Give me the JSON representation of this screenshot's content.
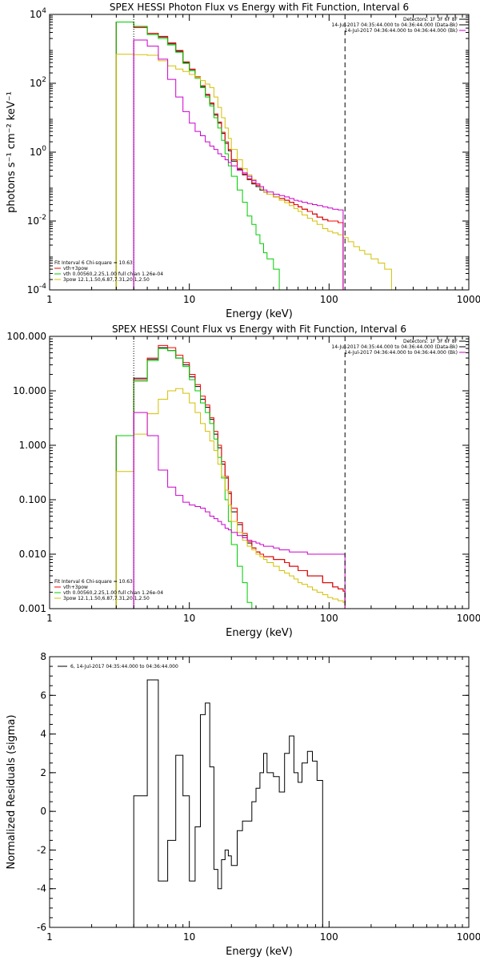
{
  "colors": {
    "black": "#000000",
    "red": "#ff0000",
    "green": "#00cc00",
    "yellow": "#d4c000",
    "magenta": "#cc00cc"
  },
  "chart_data": [
    {
      "type": "line",
      "step": true,
      "title": "SPEX HESSI Photon Flux vs Energy with Fit Function, Interval 6",
      "xlabel": "Energy (keV)",
      "ylabel": "photons s⁻¹ cm⁻² keV⁻¹",
      "xscale": "log",
      "yscale": "log",
      "xlim": [
        1,
        1000
      ],
      "ylim": [
        0.0001,
        10000
      ],
      "xticks": [
        "1",
        "10",
        "100",
        "1000"
      ],
      "yticks": [
        {
          "v": 0.0001,
          "m": "10",
          "e": "-4"
        },
        {
          "v": 0.01,
          "m": "10",
          "e": "-2"
        },
        {
          "v": 1,
          "m": "10",
          "e": "0"
        },
        {
          "v": 100,
          "m": "10",
          "e": "2"
        },
        {
          "v": 10000,
          "m": "10",
          "e": "4"
        }
      ],
      "vlines": [
        {
          "x": 4,
          "style": "dotted",
          "color": "#000000"
        },
        {
          "x": 130,
          "style": "dashed",
          "color": "#000000"
        }
      ],
      "info": [
        "Detectors: 1F 3F 6F 8F",
        "14-Jul-2017 04:35:44.000 to 04:36:44.000 (Data-Bk)",
        "14-Jul-2017 04:36:44.000 to 04:36:44.000 (Bk)"
      ],
      "info_colors": [
        "#000000",
        "#000000",
        "#cc00cc"
      ],
      "fit": [
        "Fit Interval 6   Chi-square = 10.63",
        "vth+3pow",
        "vth 0.00560,2.25,1.00  full chian 1.26e-04",
        "3pow 12.1,1.50,6.87,7.31,20.1,2.50"
      ],
      "fit_colors": [
        "#000000",
        "#ff0000",
        "#00cc00",
        "#d4c000"
      ],
      "edges": [
        3,
        4,
        5,
        6,
        7,
        8,
        9,
        10,
        11,
        12,
        13,
        14,
        15,
        16,
        17,
        18,
        19,
        20,
        22,
        24,
        26,
        28,
        30,
        32,
        34,
        36,
        40,
        44,
        48,
        52,
        56,
        60,
        64,
        70,
        76,
        82,
        90,
        98,
        106,
        116,
        126,
        137,
        150,
        165,
        180,
        200,
        225,
        250,
        280
      ],
      "series": [
        {
          "color": "#000000",
          "values": [
            6000,
            4200,
            2800,
            2200,
            1400,
            850,
            400,
            250,
            150,
            80,
            45,
            25,
            12,
            7,
            3.5,
            1.8,
            1.1,
            0.55,
            0.32,
            0.22,
            0.16,
            0.12,
            0.1,
            0.08,
            0.07,
            0.06,
            0.05,
            0.045,
            0.04,
            0.035,
            0.03,
            0.026,
            0.022,
            0.019,
            0.016,
            0.013,
            0.011,
            0.01,
            0.01,
            0.009
          ]
        },
        {
          "color": "#ff0000",
          "values": [
            6000,
            4200,
            2800,
            2300,
            1500,
            900,
            420,
            260,
            155,
            85,
            48,
            27,
            13,
            7.5,
            3.8,
            2.0,
            1.2,
            0.6,
            0.34,
            0.23,
            0.17,
            0.13,
            0.11,
            0.09,
            0.07,
            0.06,
            0.05,
            0.045,
            0.04,
            0.035,
            0.03,
            0.026,
            0.022,
            0.019,
            0.016,
            0.013,
            0.011,
            0.01,
            0.01,
            0.009
          ]
        },
        {
          "color": "#00cc00",
          "values": [
            6000,
            4500,
            2600,
            2000,
            1300,
            800,
            380,
            230,
            140,
            75,
            40,
            22,
            10,
            5,
            2.2,
            0.9,
            0.4,
            0.2,
            0.08,
            0.035,
            0.014,
            0.008,
            0.004,
            0.0022,
            0.0012,
            0.0008,
            0.0004
          ]
        },
        {
          "color": "#d4c000",
          "values": [
            700,
            680,
            650,
            450,
            320,
            260,
            220,
            180,
            150,
            120,
            95,
            75,
            40,
            20,
            10,
            5,
            2.5,
            1.2,
            0.6,
            0.33,
            0.22,
            0.16,
            0.12,
            0.09,
            0.07,
            0.06,
            0.05,
            0.04,
            0.034,
            0.028,
            0.023,
            0.019,
            0.015,
            0.012,
            0.01,
            0.008,
            0.006,
            0.005,
            0.0045,
            0.004,
            0.0033,
            0.0025,
            0.0018,
            0.0014,
            0.0011,
            0.0008,
            0.0006,
            0.0004
          ]
        },
        {
          "color": "#cc00cc",
          "values": [
            1e-05,
            1800,
            1200,
            500,
            130,
            40,
            15,
            7,
            4,
            3,
            2,
            1.5,
            1.2,
            0.9,
            0.75,
            0.6,
            0.5,
            0.4,
            0.3,
            0.25,
            0.2,
            0.15,
            0.12,
            0.1,
            0.08,
            0.07,
            0.06,
            0.055,
            0.05,
            0.045,
            0.04,
            0.038,
            0.035,
            0.032,
            0.03,
            0.028,
            0.026,
            0.024,
            0.022,
            0.021
          ]
        }
      ]
    },
    {
      "type": "line",
      "step": true,
      "title": "SPEX HESSI Count Flux vs Energy with Fit Function, Interval 6",
      "xlabel": "Energy (keV)",
      "ylabel": "",
      "xscale": "log",
      "yscale": "log",
      "xlim": [
        1,
        1000
      ],
      "ylim": [
        0.001,
        100
      ],
      "xticks": [
        "1",
        "10",
        "100",
        "1000"
      ],
      "yticks": [
        {
          "v": 0.001,
          "t": "0.001"
        },
        {
          "v": 0.01,
          "t": "0.010"
        },
        {
          "v": 0.1,
          "t": "0.100"
        },
        {
          "v": 1,
          "t": "1.000"
        },
        {
          "v": 10,
          "t": "10.000"
        },
        {
          "v": 100,
          "t": "100.000"
        }
      ],
      "vlines": [
        {
          "x": 4,
          "style": "dotted",
          "color": "#000000"
        },
        {
          "x": 130,
          "style": "dashed",
          "color": "#000000"
        }
      ],
      "info": [
        "Detectors: 1F 3F 6F 8F",
        "14-Jul-2017 04:35:44.000 to 04:36:44.000 (Data-Bk)",
        "14-Jul-2017 04:36:44.000 to 04:36:44.000 (Bk)"
      ],
      "info_colors": [
        "#000000",
        "#000000",
        "#cc00cc"
      ],
      "fit": [
        "Fit Interval 6   Chi-square = 10.63",
        "vth+3pow",
        "vth 0.00560,2.25,1.00  full chian 1.26e-04",
        "3pow 12.1,1.50,6.87,7.31,20.1,2.50"
      ],
      "fit_colors": [
        "#000000",
        "#ff0000",
        "#00cc00",
        "#d4c000"
      ],
      "edges": [
        3,
        4,
        5,
        6,
        7,
        8,
        9,
        10,
        11,
        12,
        13,
        14,
        15,
        16,
        17,
        18,
        19,
        20,
        22,
        24,
        26,
        28,
        30,
        32,
        34,
        36,
        40,
        44,
        48,
        52,
        56,
        60,
        64,
        70,
        76,
        82,
        90,
        98,
        106,
        116,
        126,
        130
      ],
      "series": [
        {
          "color": "#000000",
          "values": [
            1.5,
            17,
            38,
            62,
            55,
            40,
            30,
            18,
            12,
            7,
            5,
            3,
            1.6,
            0.9,
            0.45,
            0.25,
            0.13,
            0.06,
            0.035,
            0.022,
            0.016,
            0.013,
            0.011,
            0.01,
            0.009,
            0.009,
            0.008,
            0.008,
            0.007,
            0.006,
            0.006,
            0.005,
            0.005,
            0.004,
            0.004,
            0.004,
            0.003,
            0.003,
            0.0025,
            0.0023,
            0.0021
          ]
        },
        {
          "color": "#ff0000",
          "values": [
            1.5,
            16,
            40,
            68,
            62,
            45,
            33,
            20,
            13,
            8,
            5.5,
            3.2,
            1.8,
            1.0,
            0.5,
            0.27,
            0.14,
            0.07,
            0.038,
            0.024,
            0.017,
            0.013,
            0.011,
            0.01,
            0.009,
            0.009,
            0.008,
            0.008,
            0.007,
            0.006,
            0.006,
            0.005,
            0.005,
            0.004,
            0.004,
            0.004,
            0.003,
            0.003,
            0.0025,
            0.0023,
            0.0021
          ]
        },
        {
          "color": "#00cc00",
          "values": [
            1.5,
            15,
            36,
            60,
            55,
            40,
            28,
            16,
            10,
            6,
            4,
            2.5,
            1.3,
            0.6,
            0.25,
            0.1,
            0.04,
            0.015,
            0.006,
            0.003,
            0.0013
          ]
        },
        {
          "color": "#d4c000",
          "values": [
            0.33,
            1.6,
            3.8,
            7,
            10,
            11,
            9,
            6,
            4,
            2.5,
            1.8,
            1.2,
            0.8,
            0.45,
            0.27,
            0.15,
            0.08,
            0.04,
            0.025,
            0.018,
            0.014,
            0.012,
            0.01,
            0.009,
            0.008,
            0.007,
            0.006,
            0.005,
            0.0045,
            0.004,
            0.0035,
            0.003,
            0.0028,
            0.0025,
            0.0022,
            0.002,
            0.0018,
            0.0016,
            0.0015,
            0.0014,
            0.0013
          ]
        },
        {
          "color": "#cc00cc",
          "values": [
            0.0001,
            4,
            1.5,
            0.35,
            0.17,
            0.12,
            0.09,
            0.08,
            0.075,
            0.07,
            0.06,
            0.05,
            0.045,
            0.04,
            0.035,
            0.03,
            0.028,
            0.025,
            0.022,
            0.02,
            0.018,
            0.017,
            0.016,
            0.015,
            0.014,
            0.014,
            0.013,
            0.012,
            0.012,
            0.011,
            0.011,
            0.011,
            0.011,
            0.01,
            0.01,
            0.01,
            0.01,
            0.01,
            0.01,
            0.01,
            0.01
          ]
        }
      ]
    },
    {
      "type": "line",
      "step": true,
      "title": "",
      "xlabel": "Energy (keV)",
      "ylabel": "Normalized Residuals (sigma)",
      "xscale": "log",
      "yscale": "linear",
      "xlim": [
        1,
        1000
      ],
      "ylim": [
        -6,
        8
      ],
      "xticks": [
        "1",
        "10",
        "100",
        "1000"
      ],
      "yticks": [
        {
          "v": -6,
          "t": "-6"
        },
        {
          "v": -4,
          "t": "-4"
        },
        {
          "v": -2,
          "t": "-2"
        },
        {
          "v": 0,
          "t": "0"
        },
        {
          "v": 2,
          "t": "2"
        },
        {
          "v": 4,
          "t": "4"
        },
        {
          "v": 6,
          "t": "6"
        },
        {
          "v": 8,
          "t": "8"
        }
      ],
      "legend": "6, 14-Jul-2017 04:35:44.000 to 04:36:44.000",
      "edges": [
        4,
        5,
        6,
        7,
        8,
        9,
        10,
        11,
        12,
        13,
        14,
        15,
        16,
        17,
        18,
        19,
        20,
        22,
        24,
        26,
        28,
        30,
        32,
        34,
        36,
        40,
        44,
        48,
        52,
        56,
        60,
        64,
        70,
        76,
        82,
        90,
        98,
        106,
        116,
        126
      ],
      "series": [
        {
          "color": "#000000",
          "values": [
            0.8,
            6.8,
            -3.6,
            -1.5,
            2.9,
            0.8,
            -3.6,
            -0.8,
            5.0,
            5.6,
            2.3,
            -3.0,
            -4.0,
            -2.5,
            -2.0,
            -2.3,
            -2.8,
            -1.0,
            -0.5,
            -0.5,
            0.5,
            1.2,
            2.0,
            3.0,
            2.0,
            1.8,
            1.0,
            3.0,
            3.9,
            2.0,
            1.5,
            2.5,
            3.1,
            2.6,
            1.6
          ]
        }
      ]
    }
  ]
}
